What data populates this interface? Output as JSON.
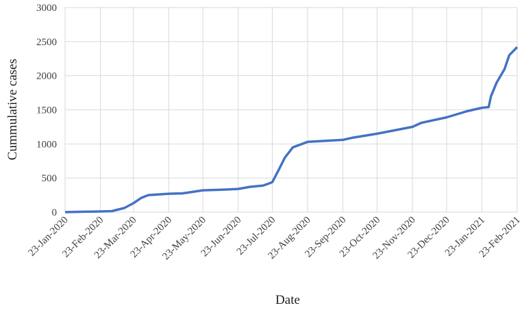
{
  "chart_data": {
    "type": "line",
    "x_label": "Date",
    "y_label": "Cummulative cases",
    "x": [
      "2020-01-23",
      "2020-02-05",
      "2020-02-23",
      "2020-03-04",
      "2020-03-15",
      "2020-03-23",
      "2020-03-30",
      "2020-04-05",
      "2020-04-23",
      "2020-05-05",
      "2020-05-23",
      "2020-06-10",
      "2020-06-23",
      "2020-07-03",
      "2020-07-15",
      "2020-07-20",
      "2020-07-23",
      "2020-07-28",
      "2020-08-03",
      "2020-08-10",
      "2020-08-23",
      "2020-09-23",
      "2020-10-01",
      "2020-10-23",
      "2020-11-23",
      "2020-12-01",
      "2020-12-23",
      "2021-01-10",
      "2021-01-23",
      "2021-01-29",
      "2021-01-31",
      "2021-02-05",
      "2021-02-12",
      "2021-02-16",
      "2021-02-23"
    ],
    "series": [
      {
        "name": "Cummulative cases",
        "color": "#4472c4",
        "values": [
          0,
          5,
          10,
          15,
          60,
          130,
          210,
          250,
          270,
          275,
          320,
          330,
          340,
          370,
          390,
          420,
          440,
          600,
          800,
          950,
          1030,
          1060,
          1090,
          1150,
          1250,
          1310,
          1390,
          1480,
          1530,
          1540,
          1700,
          1900,
          2100,
          2300,
          2420
        ]
      }
    ],
    "xlim": [
      "2020-01-23",
      "2021-02-23"
    ],
    "xticks": [
      {
        "value": "2020-01-23",
        "label": "23-Jan-2020"
      },
      {
        "value": "2020-02-23",
        "label": "23-Feb-2020"
      },
      {
        "value": "2020-03-23",
        "label": "23-Mar-2020"
      },
      {
        "value": "2020-04-23",
        "label": "23-Apr-2020"
      },
      {
        "value": "2020-05-23",
        "label": "23-May-2020"
      },
      {
        "value": "2020-06-23",
        "label": "23-Jun-2020"
      },
      {
        "value": "2020-07-23",
        "label": "23-Jul-2020"
      },
      {
        "value": "2020-08-23",
        "label": "23-Aug-2020"
      },
      {
        "value": "2020-09-23",
        "label": "23-Sep-2020"
      },
      {
        "value": "2020-10-23",
        "label": "23-Oct-2020"
      },
      {
        "value": "2020-11-23",
        "label": "23-Nov-2020"
      },
      {
        "value": "2020-12-23",
        "label": "23-Dec-2020"
      },
      {
        "value": "2021-01-23",
        "label": "23-Jan-2021"
      },
      {
        "value": "2021-02-23",
        "label": "23-Feb-2021"
      }
    ],
    "ylim": [
      0,
      3000
    ],
    "yticks": [
      0,
      500,
      1000,
      1500,
      2000,
      2500,
      3000
    ],
    "grid": true
  }
}
